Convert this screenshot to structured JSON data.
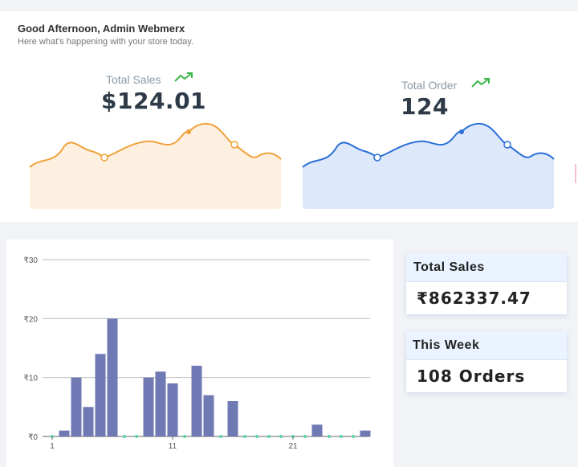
{
  "header": {
    "greeting": "Good Afternoon, Admin Webmerx",
    "subtitle": "Here what's happening with your store today."
  },
  "stats": {
    "sales": {
      "label": "Total Sales",
      "value": "$124.01",
      "icon": "trend-up-icon",
      "line_color": "#f0a23a",
      "fill_color": "#fdf0e0"
    },
    "orders": {
      "label": "Total Order",
      "value": "124",
      "icon": "trend-up-icon",
      "line_color": "#2b6fd6",
      "fill_color": "#dde9fb"
    }
  },
  "summary": {
    "total_sales_label": "Total Sales",
    "total_sales_value": "₹862337.47",
    "this_week_label": "This Week",
    "this_week_value": "108 Orders"
  },
  "colors": {
    "bar": "#6f7ab4",
    "zero_dot": "#5cd6a0",
    "trend_green": "#3cb84a"
  },
  "chart_data": {
    "type": "bar",
    "ylim": [
      0,
      30
    ],
    "y_ticks": [
      "₹0",
      "₹10",
      "₹20",
      "₹30"
    ],
    "y_tick_values": [
      0,
      10,
      20,
      30
    ],
    "x_tick_labels": [
      "1",
      "11",
      "21"
    ],
    "x_tick_positions": [
      1,
      11,
      21
    ],
    "x": [
      1,
      2,
      3,
      4,
      5,
      6,
      7,
      8,
      9,
      10,
      11,
      12,
      13,
      14,
      15,
      16,
      17,
      18,
      19,
      20,
      21,
      22,
      23,
      24,
      25,
      26,
      27
    ],
    "values": [
      0,
      1,
      10,
      5,
      14,
      20,
      0,
      0,
      10,
      11,
      9,
      0,
      12,
      7,
      0,
      6,
      0,
      0,
      0,
      0,
      0,
      0,
      2,
      0,
      0,
      0,
      1
    ],
    "grid": true
  }
}
